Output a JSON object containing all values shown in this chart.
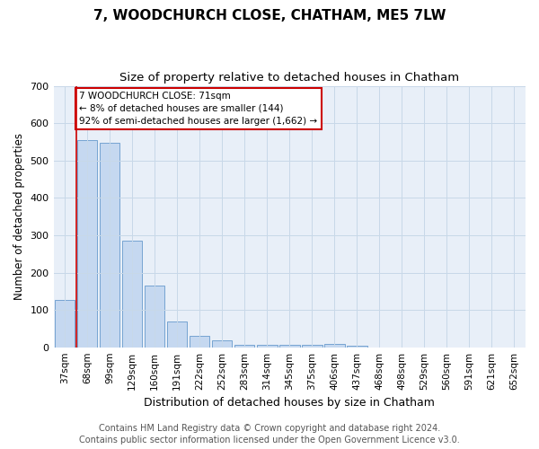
{
  "title": "7, WOODCHURCH CLOSE, CHATHAM, ME5 7LW",
  "subtitle": "Size of property relative to detached houses in Chatham",
  "xlabel": "Distribution of detached houses by size in Chatham",
  "ylabel": "Number of detached properties",
  "bar_color": "#c5d8f0",
  "bar_edge_color": "#6699cc",
  "categories": [
    "37sqm",
    "68sqm",
    "99sqm",
    "129sqm",
    "160sqm",
    "191sqm",
    "222sqm",
    "252sqm",
    "283sqm",
    "314sqm",
    "345sqm",
    "375sqm",
    "406sqm",
    "437sqm",
    "468sqm",
    "498sqm",
    "529sqm",
    "560sqm",
    "591sqm",
    "621sqm",
    "652sqm"
  ],
  "values": [
    126,
    555,
    548,
    286,
    164,
    70,
    30,
    18,
    7,
    7,
    7,
    7,
    10,
    5,
    0,
    0,
    0,
    0,
    0,
    0,
    0
  ],
  "ylim": [
    0,
    700
  ],
  "yticks": [
    0,
    100,
    200,
    300,
    400,
    500,
    600,
    700
  ],
  "vline_x": 0.5,
  "annotation_text": "7 WOODCHURCH CLOSE: 71sqm\n← 8% of detached houses are smaller (144)\n92% of semi-detached houses are larger (1,662) →",
  "annotation_box_color": "#ffffff",
  "annotation_box_edge": "#cc0000",
  "vline_color": "#cc0000",
  "footer_line1": "Contains HM Land Registry data © Crown copyright and database right 2024.",
  "footer_line2": "Contains public sector information licensed under the Open Government Licence v3.0.",
  "background_color": "#ffffff",
  "grid_color": "#c8d8e8",
  "title_fontsize": 11,
  "subtitle_fontsize": 9.5,
  "ylabel_fontsize": 8.5,
  "xlabel_fontsize": 9,
  "tick_fontsize": 7.5,
  "footer_fontsize": 7
}
